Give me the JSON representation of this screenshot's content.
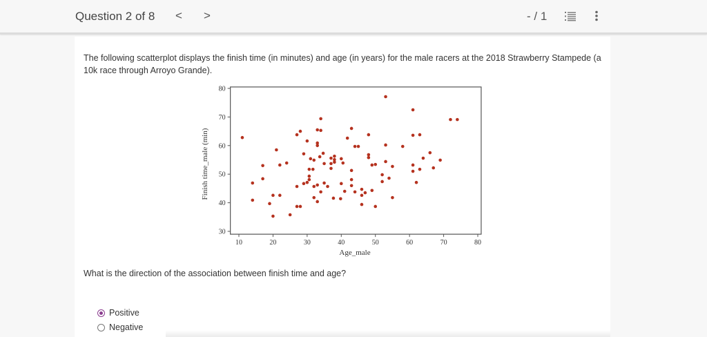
{
  "header": {
    "question_counter": "Question 2 of 8",
    "prev_label": "<",
    "next_label": ">",
    "score": "- / 1",
    "icons": [
      "numbered-list-icon",
      "more-vertical-icon"
    ]
  },
  "content": {
    "intro": "The following scatterplot displays the finish time (in minutes) and age (in years) for the male racers at the 2018 Strawberry Stampede (a 10k race through Arroyo Grande).",
    "question": "What is the direction of the association between finish time and age?",
    "options": [
      {
        "label": "Positive",
        "selected": true
      },
      {
        "label": "Negative",
        "selected": false
      }
    ]
  },
  "colors": {
    "point": "#b5321f",
    "radio_selected": "#8b3d8f",
    "page_bg": "#f7f7f7",
    "card_bg": "#ffffff"
  },
  "chart_data": {
    "type": "scatter",
    "title": "",
    "xlabel": "Age_male",
    "ylabel": "Finish time_male (min)",
    "xlim": [
      7.5,
      81
    ],
    "ylim": [
      29,
      80.5
    ],
    "xticks": [
      10,
      20,
      30,
      40,
      50,
      60,
      70,
      80
    ],
    "yticks": [
      30,
      40,
      50,
      60,
      70,
      80
    ],
    "grid": false,
    "legend": null,
    "points": [
      [
        11,
        62.8
      ],
      [
        14,
        46.9
      ],
      [
        14,
        40.9
      ],
      [
        17,
        53
      ],
      [
        17,
        48.4
      ],
      [
        19,
        39.7
      ],
      [
        20,
        35.3
      ],
      [
        20,
        42.6
      ],
      [
        22,
        42.6
      ],
      [
        21,
        58.5
      ],
      [
        22,
        53.2
      ],
      [
        24,
        53.9
      ],
      [
        25,
        35.8
      ],
      [
        27,
        38.7
      ],
      [
        28,
        38.7
      ],
      [
        27,
        45.7
      ],
      [
        29,
        46.7
      ],
      [
        27,
        63.8
      ],
      [
        28,
        65
      ],
      [
        29,
        57.1
      ],
      [
        30,
        61.6
      ],
      [
        30,
        47.1
      ],
      [
        30.6,
        51.7
      ],
      [
        31.7,
        51.7
      ],
      [
        31,
        55.4
      ],
      [
        30.6,
        49.3
      ],
      [
        30.6,
        48.1
      ],
      [
        32,
        54.9
      ],
      [
        32,
        45.7
      ],
      [
        33,
        65.5
      ],
      [
        34,
        65.3
      ],
      [
        33,
        60.9
      ],
      [
        33,
        60
      ],
      [
        33,
        46.2
      ],
      [
        32,
        41.8
      ],
      [
        33,
        40.4
      ],
      [
        33.7,
        56.1
      ],
      [
        34.7,
        57.3
      ],
      [
        34,
        69.4
      ],
      [
        34,
        43.8
      ],
      [
        35,
        53.7
      ],
      [
        35,
        46.9
      ],
      [
        36,
        45.7
      ],
      [
        37,
        53.7
      ],
      [
        37,
        52
      ],
      [
        38,
        54.2
      ],
      [
        38,
        55.1
      ],
      [
        38,
        56.3
      ],
      [
        37,
        55.6
      ],
      [
        37.7,
        41.6
      ],
      [
        39.8,
        41.4
      ],
      [
        40,
        46.7
      ],
      [
        40,
        55.4
      ],
      [
        40.5,
        53.9
      ],
      [
        41,
        44
      ],
      [
        41.8,
        62.6
      ],
      [
        43,
        66
      ],
      [
        43,
        51.3
      ],
      [
        43,
        48.1
      ],
      [
        43,
        46
      ],
      [
        44,
        59.7
      ],
      [
        45,
        59.7
      ],
      [
        44,
        43.8
      ],
      [
        46,
        42.6
      ],
      [
        46,
        39.4
      ],
      [
        46,
        44.7
      ],
      [
        47,
        43.5
      ],
      [
        48,
        63.8
      ],
      [
        48,
        56.8
      ],
      [
        48,
        55.8
      ],
      [
        49,
        53.2
      ],
      [
        50,
        53.4
      ],
      [
        49,
        44.3
      ],
      [
        50,
        38.7
      ],
      [
        52,
        49.8
      ],
      [
        52,
        47.4
      ],
      [
        53,
        77.1
      ],
      [
        53,
        60.2
      ],
      [
        53,
        54.4
      ],
      [
        54,
        48.6
      ],
      [
        55,
        52.7
      ],
      [
        55,
        41.8
      ],
      [
        58,
        59.7
      ],
      [
        61,
        72.5
      ],
      [
        61,
        63.6
      ],
      [
        63,
        63.8
      ],
      [
        61,
        53.2
      ],
      [
        61,
        51
      ],
      [
        63,
        51.7
      ],
      [
        62,
        47.1
      ],
      [
        64,
        55.6
      ],
      [
        66,
        57.5
      ],
      [
        67,
        52.2
      ],
      [
        69,
        54.9
      ],
      [
        72,
        69.1
      ],
      [
        74,
        69.1
      ]
    ]
  }
}
